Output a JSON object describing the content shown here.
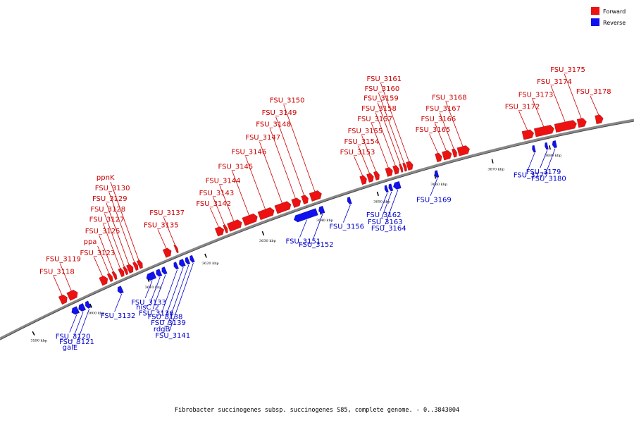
{
  "legend": [
    {
      "label": "Forward",
      "color": "#ee1111"
    },
    {
      "label": "Reverse",
      "color": "#1111ee"
    }
  ],
  "caption": "Fibrobacter succinogenes subsp. succinogenes S85, complete genome. - 0..3843004",
  "colors": {
    "forward": "#ee1111",
    "reverse": "#1111ee",
    "backbone": "#888888",
    "leader_forward": "#cc0000",
    "leader_reverse": "#0000cc"
  },
  "kbp_ticks": [
    {
      "label": "3590 kbp",
      "pos": 3590
    },
    {
      "label": "3600 kbp",
      "pos": 3600
    },
    {
      "label": "3610 kbp",
      "pos": 3610
    },
    {
      "label": "3620 kbp",
      "pos": 3620
    },
    {
      "label": "3630 kbp",
      "pos": 3630
    },
    {
      "label": "3640 kbp",
      "pos": 3640
    },
    {
      "label": "3650 kbp",
      "pos": 3650
    },
    {
      "label": "3660 kbp",
      "pos": 3660
    },
    {
      "label": "3670 kbp",
      "pos": 3670
    },
    {
      "label": "3680 kbp",
      "pos": 3680
    }
  ],
  "forward_genes": [
    {
      "name": "FSU_3118",
      "start": 3596.0,
      "end": 3597.2
    },
    {
      "name": "FSU_3119",
      "start": 3597.4,
      "end": 3599.0
    },
    {
      "name": "FSU_3123",
      "start": 3603.0,
      "end": 3604.2
    },
    {
      "name": "ppa",
      "start": 3604.4,
      "end": 3605.0
    },
    {
      "name": "FSU_3125",
      "start": 3605.2,
      "end": 3605.7
    },
    {
      "name": "FSU_3127",
      "start": 3606.3,
      "end": 3607.0
    },
    {
      "name": "FSU_3128",
      "start": 3607.1,
      "end": 3607.6
    },
    {
      "name": "FSU_3129",
      "start": 3607.7,
      "end": 3608.6
    },
    {
      "name": "FSU_3130",
      "start": 3608.8,
      "end": 3609.4
    },
    {
      "name": "ppnK",
      "start": 3609.5,
      "end": 3610.2
    },
    {
      "name": "FSU_3135",
      "start": 3614.0,
      "end": 3615.2
    },
    {
      "name": "FSU_3137",
      "start": 3615.9,
      "end": 3616.3
    },
    {
      "name": "FSU_3142",
      "start": 3623.0,
      "end": 3624.3
    },
    {
      "name": "FSU_3143",
      "start": 3624.4,
      "end": 3624.9
    },
    {
      "name": "FSU_3144",
      "start": 3625.1,
      "end": 3627.4
    },
    {
      "name": "FSU_3145",
      "start": 3627.7,
      "end": 3630.1
    },
    {
      "name": "FSU_3146",
      "start": 3630.4,
      "end": 3633.0
    },
    {
      "name": "FSU_3147",
      "start": 3633.3,
      "end": 3635.9
    },
    {
      "name": "FSU_3148",
      "start": 3636.2,
      "end": 3637.6
    },
    {
      "name": "FSU_3149",
      "start": 3637.9,
      "end": 3638.9
    },
    {
      "name": "FSU_3150",
      "start": 3639.3,
      "end": 3641.2
    },
    {
      "name": "FSU_3153",
      "start": 3648.0,
      "end": 3649.0
    },
    {
      "name": "FSU_3154",
      "start": 3649.2,
      "end": 3650.2
    },
    {
      "name": "FSU_3155",
      "start": 3650.4,
      "end": 3651.2
    },
    {
      "name": "FSU_3157",
      "start": 3652.4,
      "end": 3653.5
    },
    {
      "name": "FSU_3158",
      "start": 3653.7,
      "end": 3654.6
    },
    {
      "name": "FSU_3159",
      "start": 3654.8,
      "end": 3655.2
    },
    {
      "name": "FSU_3160",
      "start": 3655.4,
      "end": 3655.9
    },
    {
      "name": "FSU_3161",
      "start": 3656.0,
      "end": 3657.0
    },
    {
      "name": "FSU_3165",
      "start": 3661.0,
      "end": 3662.0
    },
    {
      "name": "FSU_3166",
      "start": 3662.2,
      "end": 3663.7
    },
    {
      "name": "FSU_3167",
      "start": 3663.9,
      "end": 3664.6
    },
    {
      "name": "FSU_3168",
      "start": 3664.8,
      "end": 3666.8
    },
    {
      "name": "FSU_3172",
      "start": 3676.0,
      "end": 3677.9
    },
    {
      "name": "FSU_3173",
      "start": 3678.1,
      "end": 3681.4
    },
    {
      "name": "FSU_3174",
      "start": 3681.6,
      "end": 3685.3
    },
    {
      "name": "FSU_3175",
      "start": 3685.5,
      "end": 3687.0
    },
    {
      "name": "FSU_3178",
      "start": 3688.6,
      "end": 3689.9
    }
  ],
  "reverse_genes": [
    {
      "name": "FSU_3120",
      "start": 3596.8,
      "end": 3597.9
    },
    {
      "name": "FSU_3121",
      "start": 3598.0,
      "end": 3599.0
    },
    {
      "name": "galE",
      "start": 3599.2,
      "end": 3599.9
    },
    {
      "name": "FSU_3132",
      "start": 3604.8,
      "end": 3605.6
    },
    {
      "name": "FSU_3133",
      "start": 3609.8,
      "end": 3611.3
    },
    {
      "name": "hisC_2",
      "start": 3611.5,
      "end": 3612.3
    },
    {
      "name": "FSU_3136",
      "start": 3612.5,
      "end": 3613.2
    },
    {
      "name": "FSU_3138",
      "start": 3614.6,
      "end": 3615.2
    },
    {
      "name": "FSU_3139",
      "start": 3615.5,
      "end": 3616.4
    },
    {
      "name": "rdgB",
      "start": 3616.6,
      "end": 3617.2
    },
    {
      "name": "FSU_3141",
      "start": 3617.4,
      "end": 3618.0
    },
    {
      "name": "FSU_3151",
      "start": 3635.5,
      "end": 3639.5
    },
    {
      "name": "FSU_3152",
      "start": 3639.8,
      "end": 3640.7
    },
    {
      "name": "FSU_3156",
      "start": 3644.8,
      "end": 3645.4
    },
    {
      "name": "FSU_3162",
      "start": 3651.3,
      "end": 3651.8
    },
    {
      "name": "FSU_3163",
      "start": 3652.0,
      "end": 3652.6
    },
    {
      "name": "FSU_3164",
      "start": 3652.8,
      "end": 3654.0
    },
    {
      "name": "FSU_3169",
      "start": 3660.0,
      "end": 3660.6
    },
    {
      "name": "FSU_3177",
      "start": 3677.0,
      "end": 3677.5
    },
    {
      "name": "FSU_3179",
      "start": 3679.2,
      "end": 3679.7
    },
    {
      "name": "FSU_3180",
      "start": 3680.5,
      "end": 3681.2
    }
  ]
}
